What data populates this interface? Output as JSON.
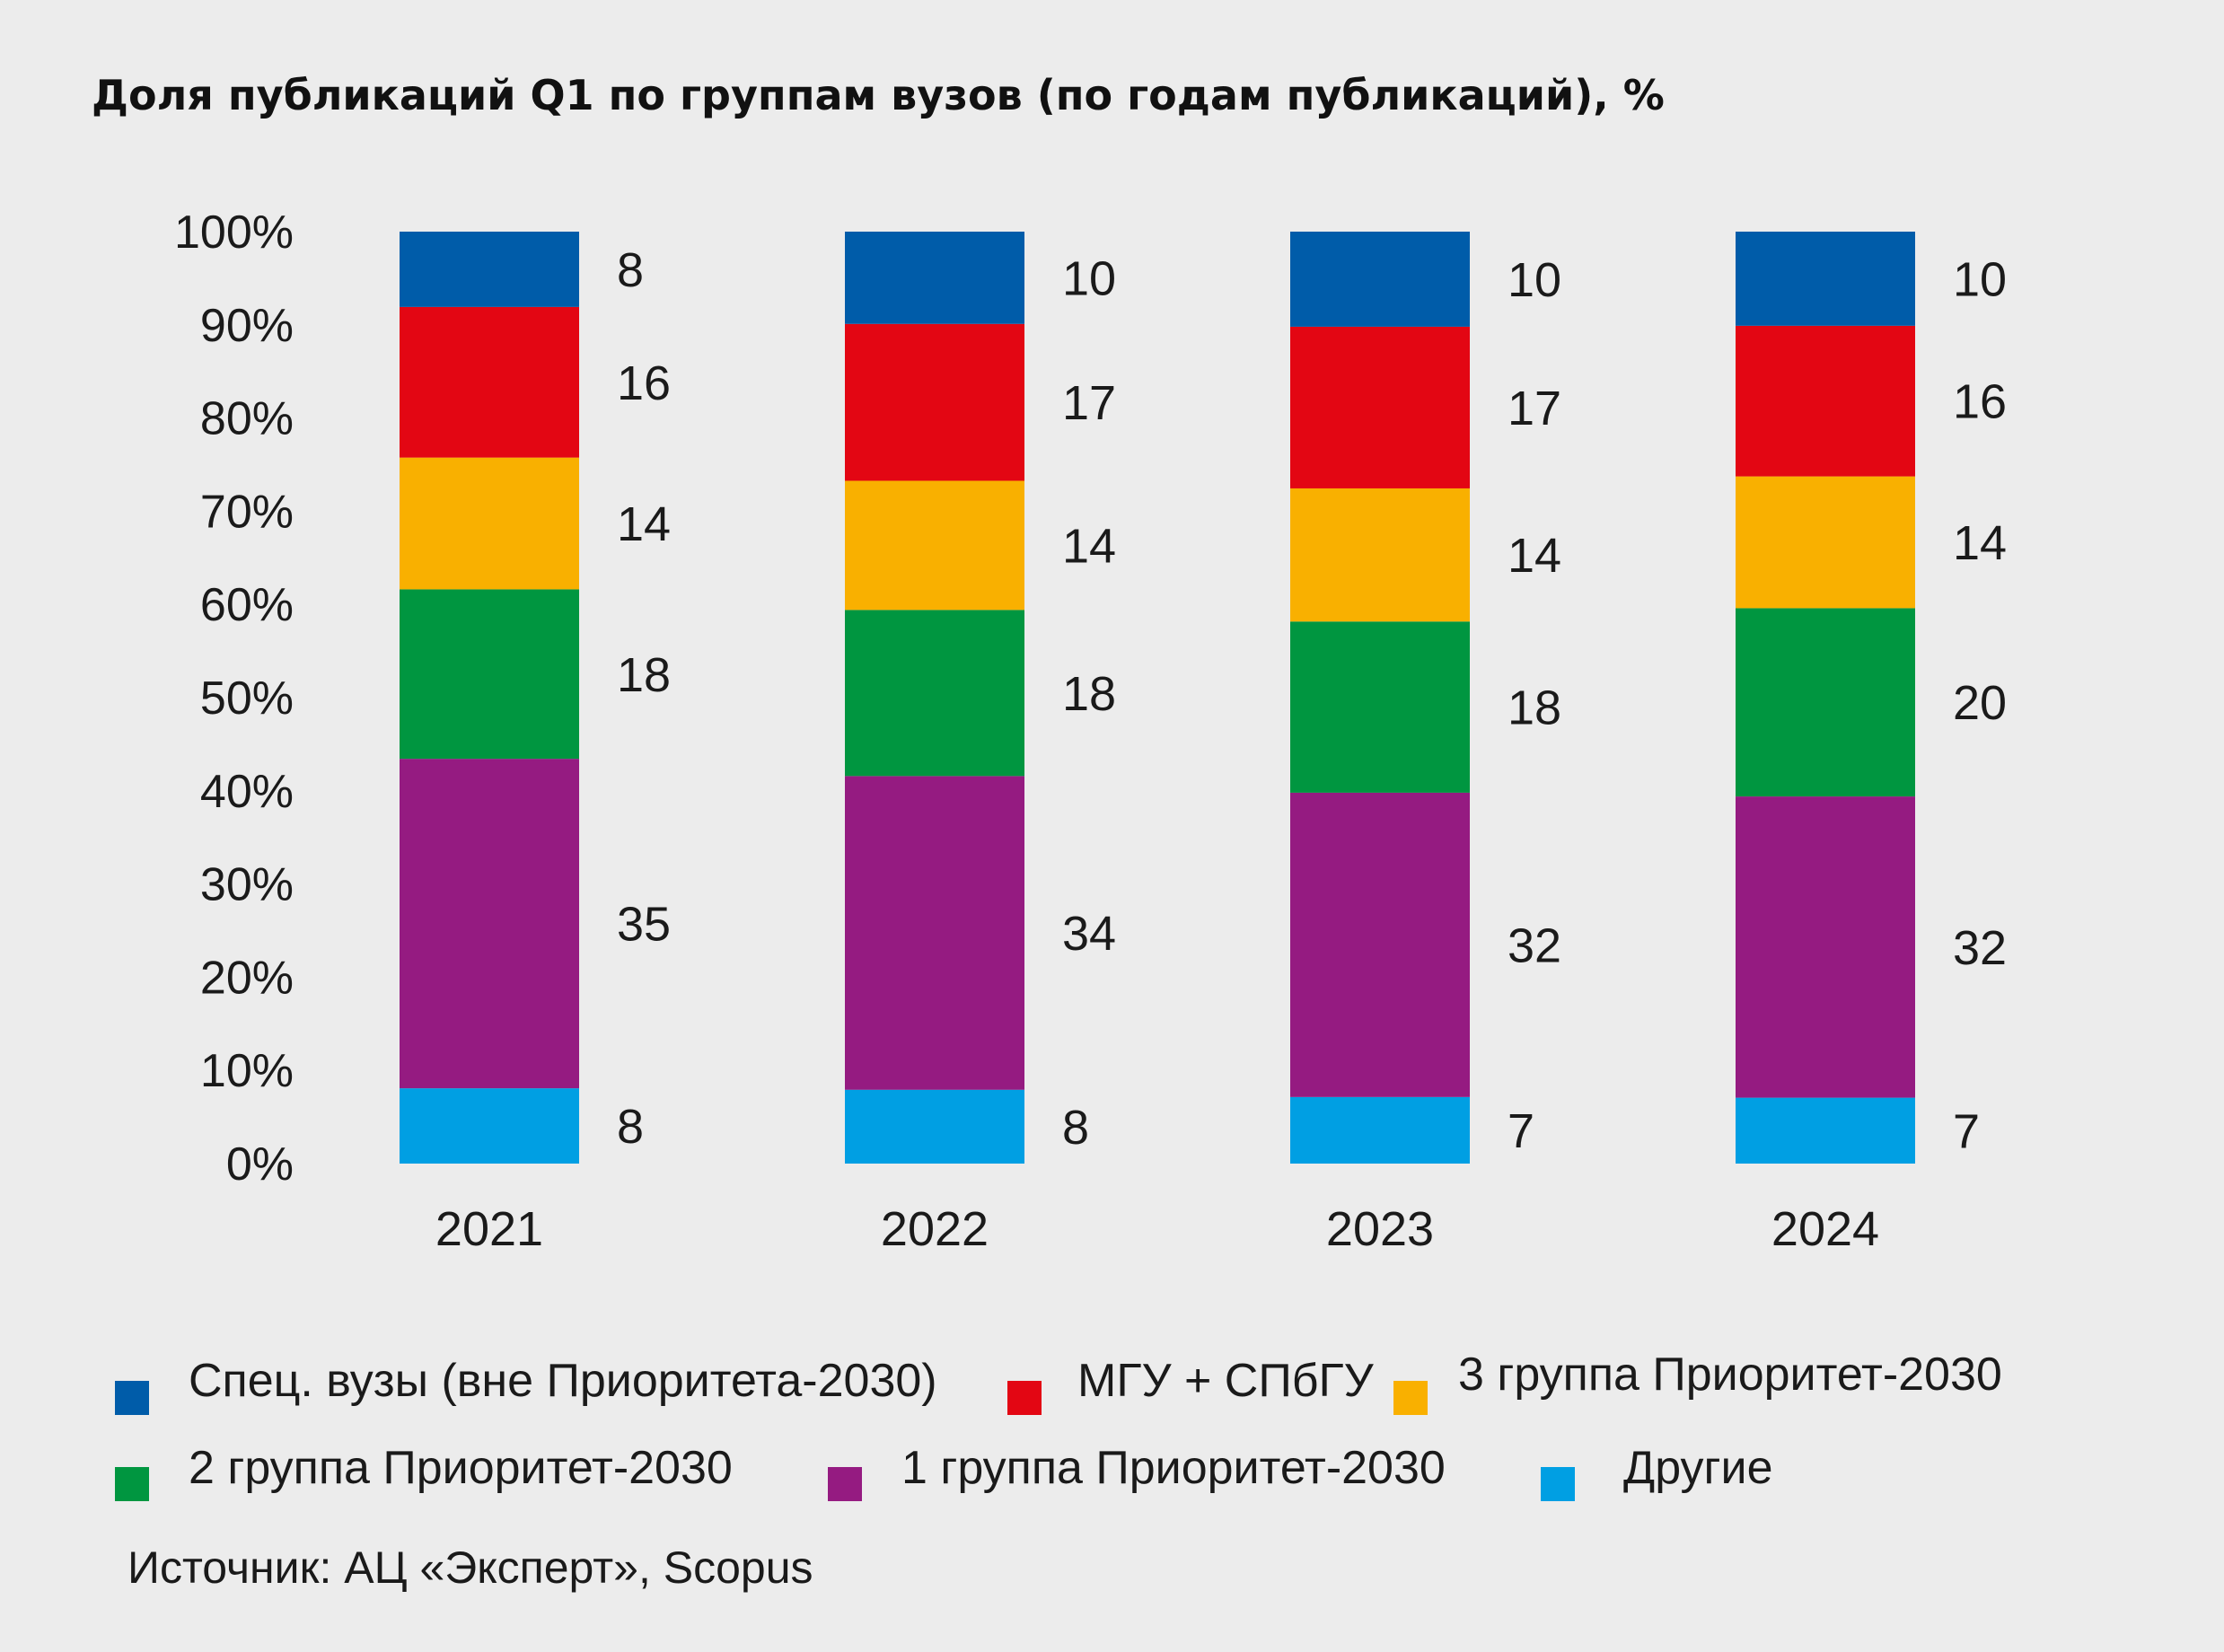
{
  "title": "Доля публикаций Q1 по группам вузов (по годам публикаций), %",
  "source": "Источник: АЦ «Эксперт», Scopus",
  "chart_data": {
    "type": "bar",
    "stacked": true,
    "title": "Доля публикаций Q1 по группам вузов (по годам публикаций), %",
    "xlabel": "",
    "ylabel": "",
    "ylim": [
      0,
      100
    ],
    "yticks": [
      "0%",
      "10%",
      "20%",
      "30%",
      "40%",
      "50%",
      "60%",
      "70%",
      "80%",
      "90%",
      "100%"
    ],
    "grid": false,
    "legend_position": "bottom",
    "categories": [
      "2021",
      "2022",
      "2023",
      "2024"
    ],
    "series": [
      {
        "name": "Другие",
        "color": "#009fe3",
        "values": [
          8,
          8,
          7,
          7
        ]
      },
      {
        "name": "1 группа Приоритет-2030",
        "color": "#951b81",
        "values": [
          35,
          34,
          32,
          32
        ]
      },
      {
        "name": "2 группа Приоритет-2030",
        "color": "#009640",
        "values": [
          18,
          18,
          18,
          20
        ]
      },
      {
        "name": "3 группа Приоритет-2030",
        "color": "#f9b000",
        "values": [
          14,
          14,
          14,
          14
        ]
      },
      {
        "name": "МГУ + СПбГУ",
        "color": "#e30613",
        "values": [
          16,
          17,
          17,
          16
        ]
      },
      {
        "name": "Спец. вузы (вне Приоритета-2030)",
        "color": "#005ca9",
        "values": [
          8,
          10,
          10,
          10
        ]
      }
    ],
    "legend_order": [
      "Спец. вузы (вне Приоритета-2030)",
      "МГУ + СПбГУ",
      "3 группа Приоритет-2030",
      "2 группа Приоритет-2030",
      "1 группа Приоритет-2030",
      "Другие"
    ]
  }
}
